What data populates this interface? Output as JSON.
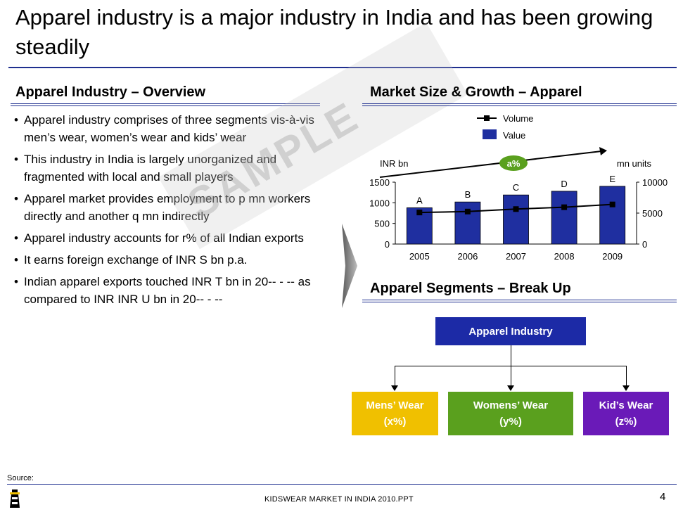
{
  "slide": {
    "title": "Apparel industry is a major industry in India and has been growing steadily",
    "watermark": "SAMPLE"
  },
  "overview": {
    "heading": "Apparel Industry – Overview",
    "bullets": [
      "Apparel industry comprises of three segments vis-à-vis men’s wear, women’s wear and kids’ wear",
      "This industry in India is largely unorganized and fragmented with local and small players",
      "Apparel market provides employment to p mn workers directly and another q mn indirectly",
      "Apparel industry accounts for r% of all Indian exports",
      "It earns foreign exchange of INR S bn p.a.",
      "Indian apparel exports touched INR T bn in 20-- - -- as compared to INR INR U bn in 20-- - --"
    ]
  },
  "market": {
    "heading": "Market Size & Growth – Apparel"
  },
  "chart_data": {
    "type": "bar",
    "categories": [
      "2005",
      "2006",
      "2007",
      "2008",
      "2009"
    ],
    "series": [
      {
        "name": "Value",
        "type": "bar",
        "axis": "left",
        "values": [
          880,
          1020,
          1190,
          1280,
          1400
        ],
        "labels": [
          "A",
          "B",
          "C",
          "D",
          "E"
        ],
        "color": "#1f2fa0"
      },
      {
        "name": "Volume",
        "type": "line",
        "axis": "right",
        "values": [
          5100,
          5250,
          5650,
          5950,
          6400
        ],
        "color": "#000000"
      }
    ],
    "ylabel": "INR bn",
    "y2label": "mn units",
    "ylim": [
      0,
      1500
    ],
    "y2lim": [
      0,
      10000
    ],
    "yticks": [
      "0",
      "500",
      "1000",
      "1500"
    ],
    "y2ticks": [
      "0",
      "5000",
      "10000"
    ],
    "growth_label": "a%",
    "legend_position": "top-right",
    "grid": false
  },
  "segments": {
    "heading": "Apparel Segments – Break Up",
    "root": "Apparel Industry",
    "children": [
      {
        "name": "Mens’ Wear",
        "share": "(x%)",
        "color": "#f0c000"
      },
      {
        "name": "Womens’ Wear",
        "share": "(y%)",
        "color": "#5aa01e"
      },
      {
        "name": "Kid’s Wear",
        "share": "(z%)",
        "color": "#6a1ab8"
      }
    ],
    "root_color": "#1c2aa6"
  },
  "footer": {
    "source": "Source:",
    "file": "KIDSWEAR MARKET IN INDIA 2010.PPT",
    "page": "4"
  }
}
